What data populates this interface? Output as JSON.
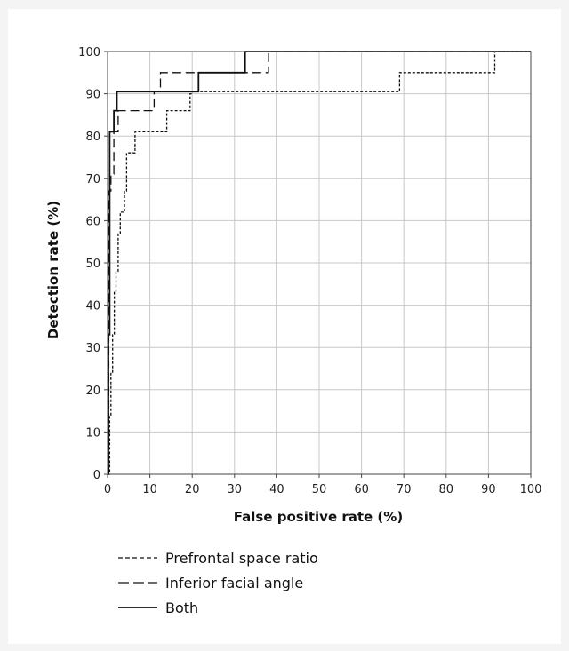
{
  "chart_data": {
    "type": "line",
    "xlabel": "False positive rate (%)",
    "ylabel": "Detection rate (%)",
    "xlim": [
      0,
      100
    ],
    "ylim": [
      0,
      100
    ],
    "xticks": [
      0,
      10,
      20,
      30,
      40,
      50,
      60,
      70,
      80,
      90,
      100
    ],
    "yticks": [
      0,
      10,
      20,
      30,
      40,
      50,
      60,
      70,
      80,
      90,
      100
    ],
    "grid": true,
    "legend_position": "bottom-left",
    "series": [
      {
        "name": "Prefrontal space ratio",
        "style": "dotted",
        "x": [
          0,
          0.5,
          0.5,
          0.8,
          0.8,
          1.2,
          1.2,
          1.6,
          1.6,
          2,
          2,
          2.5,
          2.5,
          3,
          3,
          4,
          4,
          4.5,
          4.5,
          6.5,
          6.5,
          7.5,
          7.5,
          14,
          14,
          19.5,
          19.5,
          20,
          20,
          69,
          69,
          91.5,
          91.5,
          100
        ],
        "y": [
          0,
          0,
          14,
          14,
          24,
          24,
          33,
          33,
          43,
          43,
          48,
          48,
          57,
          57,
          62,
          62,
          67,
          67,
          76,
          76,
          81,
          81,
          81,
          81,
          86,
          86,
          90,
          90,
          90.5,
          90.5,
          95,
          95,
          100,
          100
        ]
      },
      {
        "name": "Inferior facial angle",
        "style": "dashed",
        "x": [
          0,
          0.3,
          0.3,
          0.8,
          0.8,
          1.5,
          1.5,
          2.5,
          2.5,
          11,
          11,
          12.5,
          12.5,
          38,
          38,
          100
        ],
        "y": [
          0,
          0,
          67,
          67,
          71,
          71,
          81,
          81,
          86,
          86,
          90.5,
          90.5,
          95,
          95,
          100,
          100
        ]
      },
      {
        "name": "Both",
        "style": "solid",
        "x": [
          0,
          0.2,
          0.2,
          0.5,
          0.5,
          1.5,
          1.5,
          2.2,
          2.2,
          21.5,
          21.5,
          32.5,
          32.5,
          100
        ],
        "y": [
          0,
          0,
          33,
          33,
          81,
          81,
          86,
          86,
          90.5,
          90.5,
          95,
          95,
          100,
          100
        ]
      }
    ]
  }
}
